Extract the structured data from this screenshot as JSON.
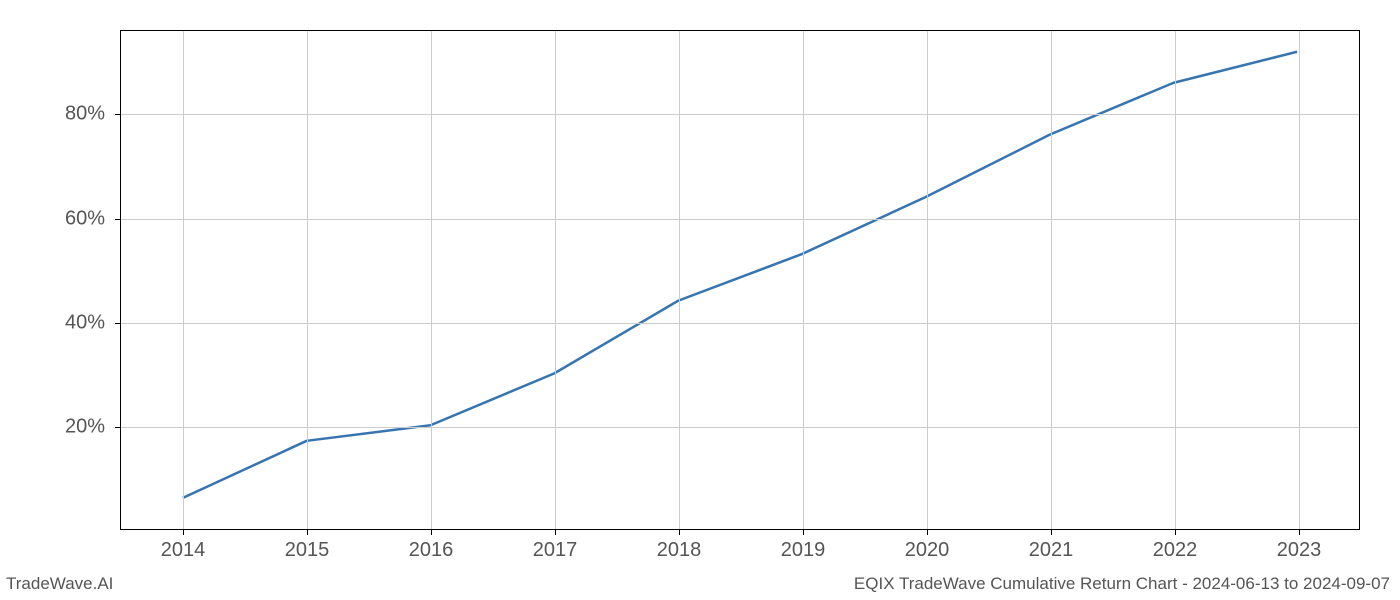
{
  "chart": {
    "type": "line",
    "x_years": [
      2014,
      2015,
      2016,
      2017,
      2018,
      2019,
      2020,
      2021,
      2022,
      2023
    ],
    "x_domain_min": 2013.5,
    "x_domain_max": 2023.5,
    "y_percent": [
      6,
      17,
      20,
      30,
      44,
      53,
      64,
      76,
      86,
      92
    ],
    "y_domain_min": 0,
    "y_domain_max": 96,
    "x_ticks": [
      2014,
      2015,
      2016,
      2017,
      2018,
      2019,
      2020,
      2021,
      2022,
      2023
    ],
    "x_tick_labels": [
      "2014",
      "2015",
      "2016",
      "2017",
      "2018",
      "2019",
      "2020",
      "2021",
      "2022",
      "2023"
    ],
    "y_ticks": [
      20,
      40,
      60,
      80
    ],
    "y_tick_labels": [
      "20%",
      "40%",
      "60%",
      "80%"
    ],
    "line_color": "#3675b0",
    "line_width": 2.5,
    "grid_color": "#cccccc",
    "background_color": "#ffffff",
    "tick_label_color": "#555555",
    "tick_fontsize": 20,
    "plot_border_color": "#000000"
  },
  "footer": {
    "left_text": "TradeWave.AI",
    "right_text": "EQIX TradeWave Cumulative Return Chart - 2024-06-13 to 2024-09-07",
    "font_color": "#555555",
    "fontsize": 17
  }
}
